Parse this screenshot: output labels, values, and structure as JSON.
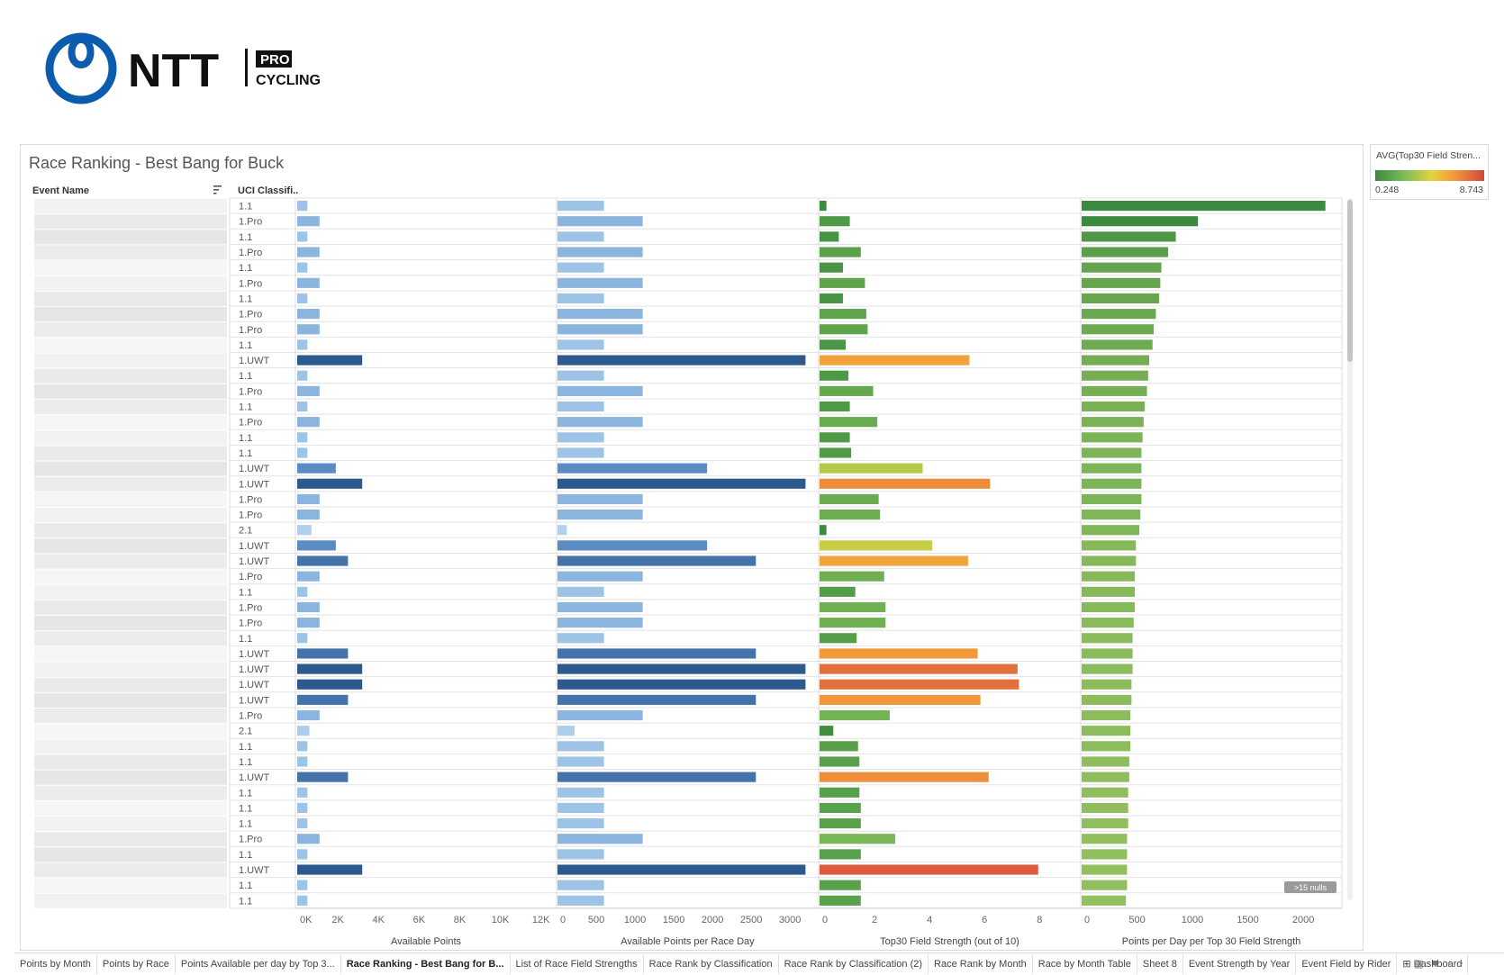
{
  "logo": {
    "brand": "NTT",
    "badge": "PRO",
    "subtitle": "CYCLING"
  },
  "dashboard": {
    "title": "Race Ranking - Best Bang for Buck",
    "columns": {
      "event_name": "Event Name",
      "uci_class": "UCI Classifi.."
    },
    "nulls_badge": ">15 nulls"
  },
  "legend": {
    "title": "AVG(Top30 Field Stren...",
    "min": "0.248",
    "max": "8.743"
  },
  "tabs": [
    "Points by Month",
    "Points by Race",
    "Points Available per day by Top 3...",
    "Race Ranking - Best Bang for B...",
    "List of Race Field Strengths",
    "Race Rank by Classification",
    "Race Rank by Classification (2)",
    "Race Rank by Month",
    "Race by Month Table",
    "Sheet 8",
    "Event Strength by Year",
    "Event Field by Rider",
    "Dashboard"
  ],
  "active_tab": 3,
  "colors": {
    "light_blue": "#b3d4ef",
    "mid_blue": "#8ab4de",
    "blue": "#5b8bc3",
    "dark_blue": "#2d5a8e",
    "dark_green": "#3a8b3f",
    "light_green": "#93c05f"
  },
  "chart_data": {
    "type": "bar",
    "categories": [
      "1.1",
      "1.Pro",
      "1.1",
      "1.Pro",
      "1.1",
      "1.Pro",
      "1.1",
      "1.Pro",
      "1.Pro",
      "1.1",
      "1.UWT",
      "1.1",
      "1.Pro",
      "1.1",
      "1.Pro",
      "1.1",
      "1.1",
      "1.UWT",
      "1.UWT",
      "1.Pro",
      "1.Pro",
      "2.1",
      "1.UWT",
      "1.UWT",
      "1.Pro",
      "1.1",
      "1.Pro",
      "1.Pro",
      "1.1",
      "1.UWT",
      "1.UWT",
      "1.UWT",
      "1.UWT",
      "1.Pro",
      "2.1",
      "1.1",
      "1.1",
      "1.UWT",
      "1.1",
      "1.1",
      "1.1",
      "1.Pro",
      "1.1",
      "1.UWT",
      "1.1",
      "1.1"
    ],
    "series": [
      {
        "name": "Available Points",
        "values": [
          500,
          1100,
          500,
          1100,
          500,
          1100,
          500,
          1100,
          1100,
          500,
          3200,
          500,
          1100,
          500,
          1100,
          500,
          500,
          1900,
          3200,
          1100,
          1100,
          700,
          1900,
          2500,
          1100,
          500,
          1100,
          1100,
          500,
          2500,
          3200,
          3200,
          2500,
          1100,
          600,
          500,
          500,
          2500,
          500,
          500,
          500,
          1100,
          500,
          3200,
          500,
          500
        ]
      },
      {
        "name": "Available Points per Race Day",
        "values": [
          600,
          1100,
          600,
          1100,
          600,
          1100,
          600,
          1100,
          1100,
          600,
          3200,
          600,
          1100,
          600,
          1100,
          600,
          600,
          1930,
          3200,
          1100,
          1100,
          120,
          1930,
          2560,
          1100,
          600,
          1100,
          1100,
          600,
          2560,
          3200,
          3200,
          2560,
          1100,
          220,
          600,
          600,
          2560,
          600,
          600,
          600,
          1100,
          600,
          3200,
          600,
          600
        ]
      },
      {
        "name": "Top30 Field Strength (out of 10)",
        "values": [
          0.25,
          1.1,
          0.7,
          1.5,
          0.85,
          1.65,
          0.85,
          1.7,
          1.75,
          0.95,
          5.45,
          1.05,
          1.95,
          1.1,
          2.1,
          1.1,
          1.15,
          3.75,
          6.2,
          2.15,
          2.2,
          0.25,
          4.1,
          5.4,
          2.35,
          1.3,
          2.4,
          2.4,
          1.35,
          5.75,
          7.2,
          7.25,
          5.85,
          2.55,
          0.5,
          1.4,
          1.45,
          6.15,
          1.45,
          1.5,
          1.5,
          2.75,
          1.5,
          7.95,
          1.5,
          1.5
        ]
      },
      {
        "name": "Points per Day per Top 30 Field Strength",
        "values": [
          2200,
          1050,
          850,
          780,
          720,
          710,
          700,
          670,
          650,
          640,
          610,
          600,
          590,
          570,
          560,
          550,
          540,
          540,
          540,
          540,
          530,
          520,
          490,
          490,
          480,
          480,
          480,
          470,
          460,
          460,
          460,
          450,
          450,
          440,
          440,
          440,
          430,
          430,
          420,
          420,
          420,
          410,
          410,
          410,
          410,
          400
        ]
      }
    ],
    "axes": [
      {
        "label": "Available Points",
        "ticks": [
          "0K",
          "2K",
          "4K",
          "6K",
          "8K",
          "10K",
          "12K"
        ],
        "range": [
          0,
          12500
        ]
      },
      {
        "label": "Available Points per Race Day",
        "ticks": [
          "0",
          "500",
          "1000",
          "1500",
          "2000",
          "2500",
          "3000"
        ],
        "range": [
          0,
          3300
        ]
      },
      {
        "label": "Top30 Field Strength (out of 10)",
        "ticks": [
          "0",
          "2",
          "4",
          "6",
          "8"
        ],
        "range": [
          0,
          9.3
        ]
      },
      {
        "label": "Points per Day per Top 30 Field Strength",
        "ticks": [
          "0",
          "500",
          "1000",
          "1500",
          "2000"
        ],
        "range": [
          0,
          2300
        ]
      }
    ],
    "color_legend": {
      "field": "AVG(Top30 Field Strength)",
      "min": 0.248,
      "max": 8.743
    },
    "grid": true
  }
}
